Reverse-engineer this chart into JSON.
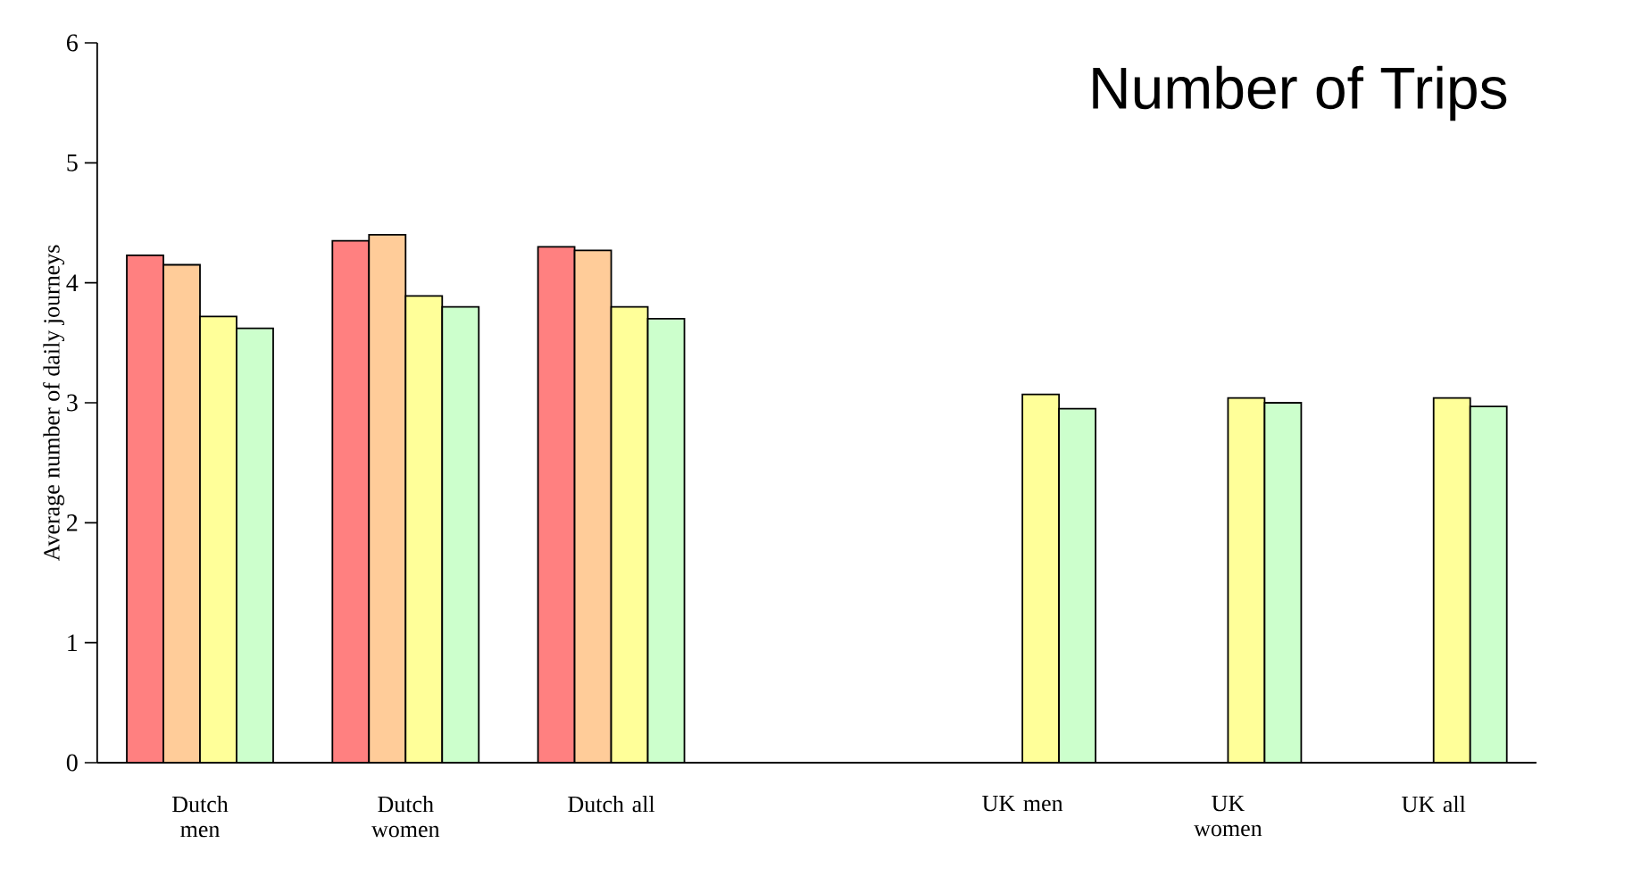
{
  "chart_data": {
    "type": "bar",
    "title": "Number of Trips",
    "ylabel": "Average number of daily journeys",
    "categories": [
      "Dutch men",
      "Dutch women",
      "Dutch all",
      null,
      "UK men",
      "UK women",
      "UK all"
    ],
    "series": [
      {
        "color": "#ff8080",
        "values": [
          4.23,
          4.35,
          4.3,
          null,
          null,
          null,
          null
        ]
      },
      {
        "color": "#ffcc99",
        "values": [
          4.15,
          4.4,
          4.27,
          null,
          null,
          null,
          null
        ]
      },
      {
        "color": "#ffff99",
        "values": [
          3.72,
          3.89,
          3.8,
          null,
          3.07,
          3.04,
          3.04
        ]
      },
      {
        "color": "#ccffcc",
        "values": [
          3.62,
          3.8,
          3.7,
          null,
          2.95,
          3.0,
          2.97
        ]
      }
    ],
    "ylim": [
      0,
      6
    ],
    "yticks": [
      0,
      1,
      2,
      3,
      4,
      5,
      6
    ]
  }
}
